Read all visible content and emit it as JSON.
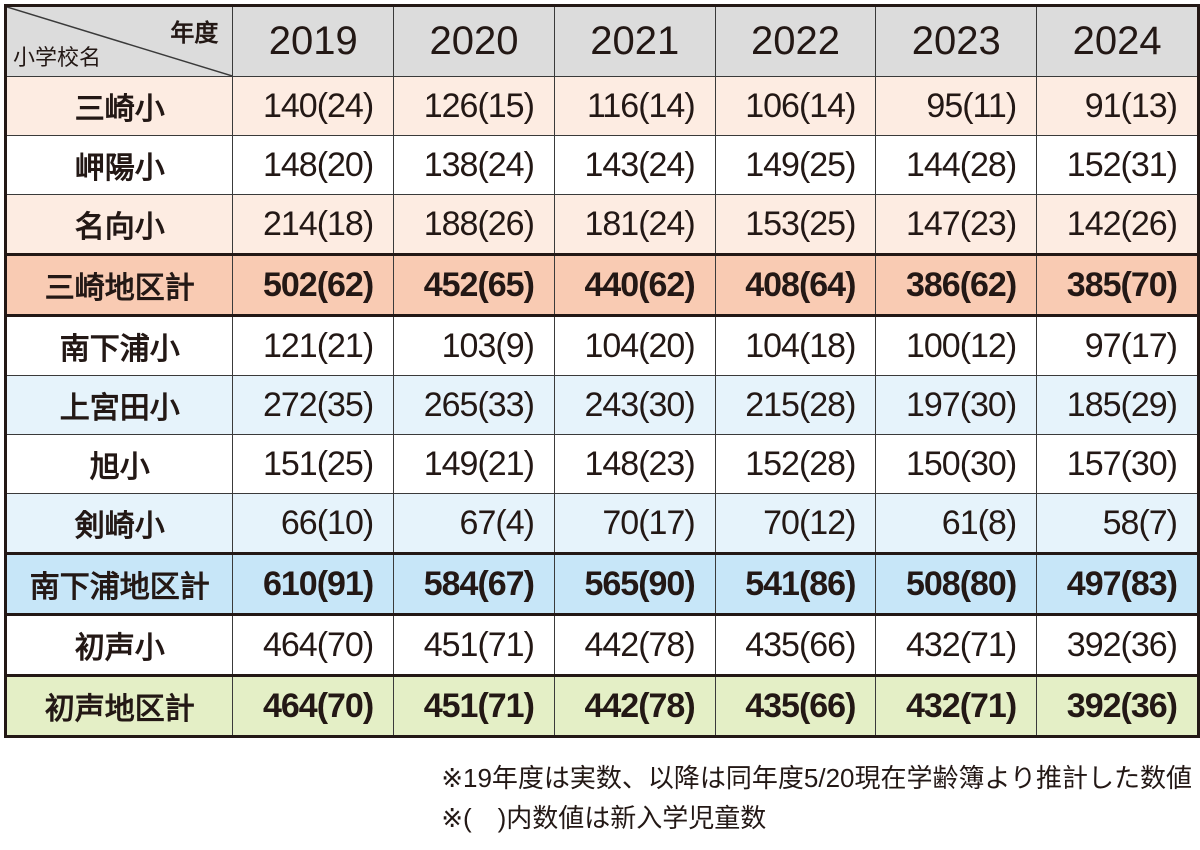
{
  "chart_data": {
    "type": "table",
    "corner_year_label": "年度",
    "corner_school_label": "小学校名",
    "columns": [
      "2019",
      "2020",
      "2021",
      "2022",
      "2023",
      "2024"
    ],
    "rows": [
      {
        "name": "三崎小",
        "style": "pink",
        "values": [
          "140(24)",
          "126(15)",
          "116(14)",
          "106(14)",
          "95(11)",
          "91(13)"
        ]
      },
      {
        "name": "岬陽小",
        "style": "white",
        "values": [
          "148(20)",
          "138(24)",
          "143(24)",
          "149(25)",
          "144(28)",
          "152(31)"
        ]
      },
      {
        "name": "名向小",
        "style": "pink",
        "values": [
          "214(18)",
          "188(26)",
          "181(24)",
          "153(25)",
          "147(23)",
          "142(26)"
        ]
      },
      {
        "name": "三崎地区計",
        "style": "pinksub",
        "subtotal": true,
        "values": [
          "502(62)",
          "452(65)",
          "440(62)",
          "408(64)",
          "386(62)",
          "385(70)"
        ]
      },
      {
        "name": "南下浦小",
        "style": "white",
        "values": [
          "121(21)",
          "103(9)",
          "104(20)",
          "104(18)",
          "100(12)",
          "97(17)"
        ]
      },
      {
        "name": "上宮田小",
        "style": "blue",
        "values": [
          "272(35)",
          "265(33)",
          "243(30)",
          "215(28)",
          "197(30)",
          "185(29)"
        ]
      },
      {
        "name": "旭小",
        "style": "white",
        "values": [
          "151(25)",
          "149(21)",
          "148(23)",
          "152(28)",
          "150(30)",
          "157(30)"
        ]
      },
      {
        "name": "剣崎小",
        "style": "blue",
        "values": [
          "66(10)",
          "67(4)",
          "70(17)",
          "70(12)",
          "61(8)",
          "58(7)"
        ]
      },
      {
        "name": "南下浦地区計",
        "style": "bluesub",
        "subtotal": true,
        "values": [
          "610(91)",
          "584(67)",
          "565(90)",
          "541(86)",
          "508(80)",
          "497(83)"
        ]
      },
      {
        "name": "初声小",
        "style": "white",
        "values": [
          "464(70)",
          "451(71)",
          "442(78)",
          "435(66)",
          "432(71)",
          "392(36)"
        ]
      },
      {
        "name": "初声地区計",
        "style": "green",
        "subtotal": true,
        "values": [
          "464(70)",
          "451(71)",
          "442(78)",
          "435(66)",
          "432(71)",
          "392(36)"
        ]
      }
    ]
  },
  "notes": [
    "※19年度は実数、以降は同年度5/20現在学齢簿より推計した数値",
    "※(　)内数値は新入学児童数"
  ],
  "colors": {
    "header": "#dcdcdc",
    "pink": "#fdece2",
    "pinksub": "#f9cbb3",
    "blue": "#e6f3fb",
    "bluesub": "#c7e6f8",
    "green": "#e4efc6"
  }
}
